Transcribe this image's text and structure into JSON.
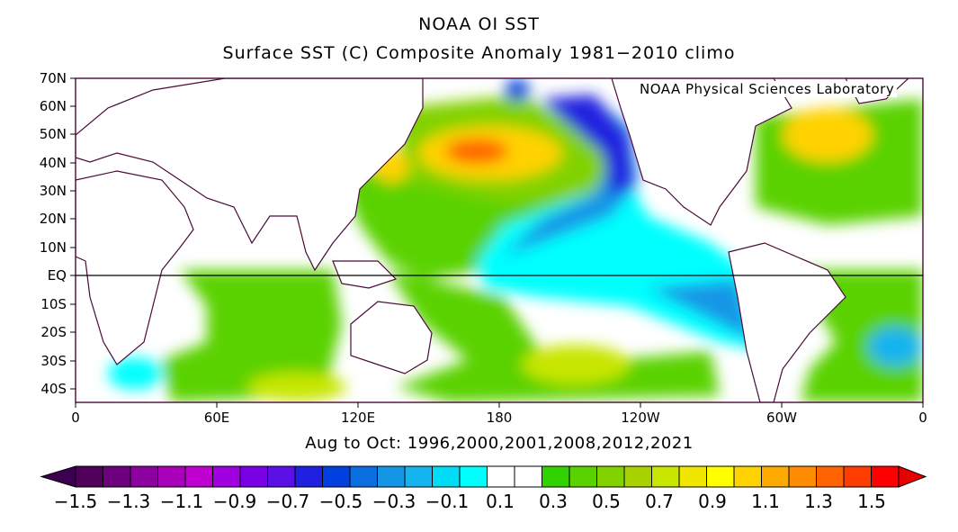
{
  "title": "NOAA OI SST",
  "subtitle": "Surface SST (C) Composite Anomaly 1981−2010 climo",
  "credit": "NOAA Physical Sciences Laboratory",
  "period": "Aug to Oct: 1996,2000,2001,2008,2012,2021",
  "lat_labels": [
    "70N",
    "60N",
    "50N",
    "40N",
    "30N",
    "20N",
    "10N",
    "EQ",
    "10S",
    "20S",
    "30S",
    "40S"
  ],
  "lon_labels": [
    "0",
    "60E",
    "120E",
    "180",
    "120W",
    "60W",
    "0"
  ],
  "colorbar": {
    "labels": [
      "−1.5",
      "−1.3",
      "−1.1",
      "−0.9",
      "−0.7",
      "−0.5",
      "−0.3",
      "−0.1",
      "0.1",
      "0.3",
      "0.5",
      "0.7",
      "0.9",
      "1.1",
      "1.3",
      "1.5"
    ],
    "colors": [
      "#50005a",
      "#6e0080",
      "#8c00a0",
      "#a800b8",
      "#c000d0",
      "#a000e0",
      "#7a00e6",
      "#5a10e6",
      "#2020e0",
      "#0040e0",
      "#0a6ee0",
      "#1496e6",
      "#14b4f0",
      "#00dcf5",
      "#00ffff",
      "#ffffff",
      "#ffffff",
      "#32d200",
      "#5ad200",
      "#82d200",
      "#aad200",
      "#c8e600",
      "#f0e600",
      "#ffff00",
      "#ffd200",
      "#ffaa00",
      "#ff8c00",
      "#ff6400",
      "#ff3c00",
      "#ff0000"
    ],
    "min_color": "#3c0050",
    "max_color": "#e60000"
  },
  "colors": {
    "land": "#ffffff",
    "coast": "#4a0a3a",
    "neutral_sea": "#ffffff"
  }
}
